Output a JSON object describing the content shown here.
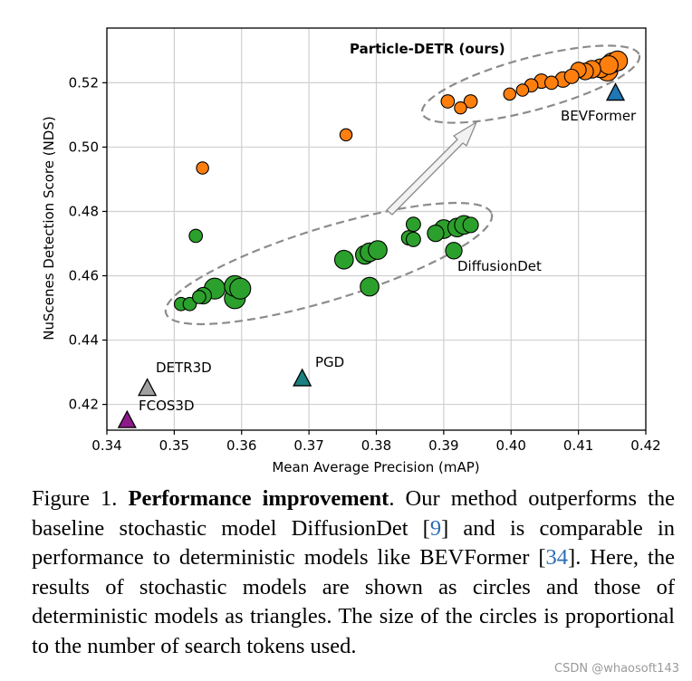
{
  "chart_data": {
    "type": "scatter",
    "title": "",
    "xlabel": "Mean Average Precision (mAP)",
    "ylabel": "NuScenes Detection Score (NDS)",
    "xlim": [
      0.34,
      0.42
    ],
    "ylim": [
      0.412,
      0.537
    ],
    "xticks": [
      "0.34",
      "0.35",
      "0.36",
      "0.37",
      "0.38",
      "0.39",
      "0.40",
      "0.41",
      "0.42"
    ],
    "yticks": [
      "0.42",
      "0.44",
      "0.46",
      "0.48",
      "0.50",
      "0.52"
    ],
    "grid": true,
    "series": [
      {
        "key": "diffusiondet",
        "marker": "circle",
        "color": "#2ca02c",
        "points": [
          [
            0.351,
            0.4512,
            0.3
          ],
          [
            0.3523,
            0.4512,
            0.3
          ],
          [
            0.3532,
            0.4724,
            0.3
          ],
          [
            0.3537,
            0.4534,
            0.3
          ],
          [
            0.3543,
            0.4538,
            0.6
          ],
          [
            0.356,
            0.456,
            1.0
          ],
          [
            0.359,
            0.453,
            1.0
          ],
          [
            0.359,
            0.4568,
            1.0
          ],
          [
            0.3598,
            0.456,
            1.0
          ],
          [
            0.3752,
            0.465,
            0.8
          ],
          [
            0.3783,
            0.4665,
            0.8
          ],
          [
            0.379,
            0.4673,
            0.8
          ],
          [
            0.3802,
            0.468,
            0.8
          ],
          [
            0.379,
            0.4566,
            0.8
          ],
          [
            0.3848,
            0.4718,
            0.4
          ],
          [
            0.3855,
            0.4713,
            0.4
          ],
          [
            0.3855,
            0.476,
            0.4
          ],
          [
            0.3888,
            0.4732,
            0.6
          ],
          [
            0.39,
            0.4745,
            0.8
          ],
          [
            0.3915,
            0.4678,
            0.6
          ],
          [
            0.392,
            0.475,
            0.8
          ],
          [
            0.393,
            0.4758,
            0.8
          ],
          [
            0.394,
            0.4758,
            0.5
          ]
        ]
      },
      {
        "key": "particle-detr",
        "marker": "circle",
        "color": "#ff7f0e",
        "points": [
          [
            0.3542,
            0.4935,
            0.2
          ],
          [
            0.3755,
            0.5038,
            0.2
          ],
          [
            0.3906,
            0.5142,
            0.3
          ],
          [
            0.3925,
            0.5122,
            0.2
          ],
          [
            0.394,
            0.5142,
            0.3
          ],
          [
            0.3998,
            0.5165,
            0.2
          ],
          [
            0.4017,
            0.5177,
            0.2
          ],
          [
            0.403,
            0.5192,
            0.3
          ],
          [
            0.4045,
            0.5205,
            0.4
          ],
          [
            0.406,
            0.52,
            0.3
          ],
          [
            0.4077,
            0.521,
            0.5
          ],
          [
            0.409,
            0.522,
            0.4
          ],
          [
            0.41,
            0.524,
            0.5
          ],
          [
            0.411,
            0.5235,
            0.6
          ],
          [
            0.412,
            0.5242,
            0.7
          ],
          [
            0.4133,
            0.5245,
            0.8
          ],
          [
            0.4145,
            0.5255,
            0.8
          ],
          [
            0.415,
            0.5262,
            0.9
          ],
          [
            0.4158,
            0.5268,
            0.9
          ],
          [
            0.4143,
            0.5238,
            1.0
          ]
        ]
      },
      {
        "key": "deterministic",
        "marker": "triangle",
        "points": [
          {
            "name": "FCOS3D",
            "x": 0.343,
            "y": 0.4152,
            "color": "#8b1a8b"
          },
          {
            "name": "DETR3D",
            "x": 0.346,
            "y": 0.4252,
            "color": "#a0a0a0"
          },
          {
            "name": "PGD",
            "x": 0.369,
            "y": 0.4282,
            "color": "#1a8080"
          },
          {
            "name": "BEVFormer",
            "x": 0.4155,
            "y": 0.517,
            "color": "#1f77b4"
          }
        ]
      }
    ],
    "annotations": {
      "particle_detr_label": "Particle-DETR (ours)",
      "diffusiondet_label": "DiffusionDet",
      "bevformer_label": "BEVFormer",
      "pgd_label": "PGD",
      "detr3d_label": "DETR3D",
      "fcos3d_label": "FCOS3D"
    }
  },
  "caption": {
    "figure_number": "Figure 1.",
    "title": "Performance improvement",
    "text_1": ". Our method outperforms the baseline stochastic model DiffusionDet [",
    "ref_1": "9",
    "text_2": "] and is comparable in performance to deterministic models like BEVFormer [",
    "ref_2": "34",
    "text_3": "]. Here, the results of stochastic models are shown as circles and those of deterministic models as triangles. The size of the circles is proportional to the number of search tokens used."
  },
  "watermark": "CSDN @whaosoft143"
}
